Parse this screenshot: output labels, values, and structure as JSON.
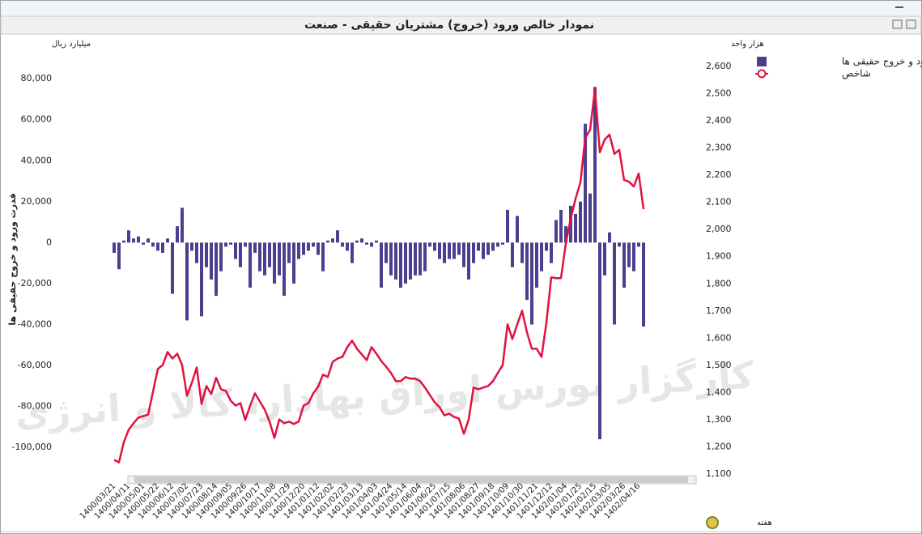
{
  "chart_data": {
    "type": "bar",
    "title": "نمودار خالص ورود (خروج) مشتریان حقیقی - صنعت",
    "y_unit": "میلیارد ریال",
    "y2_unit": "هزار واحد",
    "y_label": "قدرت ورود و خروج حقیقی ها",
    "x_label": "هفته",
    "watermark": "کارگزار بورس اوراق بهادار، کالا و انرژی",
    "categories": [
      "1400/03/21",
      null,
      null,
      "1400/04/11",
      null,
      null,
      "1400/05/01",
      null,
      null,
      "1400/05/22",
      null,
      null,
      "1400/06/12",
      null,
      null,
      "1400/07/02",
      null,
      null,
      "1400/07/23",
      null,
      null,
      "1400/08/14",
      null,
      null,
      "1400/09/05",
      null,
      null,
      "1400/09/26",
      null,
      null,
      "1400/10/17",
      null,
      null,
      "1400/11/08",
      null,
      null,
      "1400/11/29",
      null,
      null,
      "1400/12/20",
      null,
      null,
      "1401/01/12",
      null,
      null,
      "1401/02/02",
      null,
      null,
      "1401/02/23",
      null,
      null,
      "1401/03/13",
      null,
      null,
      "1401/04/03",
      null,
      null,
      "1401/04/24",
      null,
      null,
      "1401/05/14",
      null,
      null,
      "1401/06/04",
      null,
      null,
      "1401/06/25",
      null,
      null,
      "1401/07/15",
      null,
      null,
      "1401/08/06",
      null,
      null,
      "1401/08/27",
      null,
      null,
      "1401/09/18",
      null,
      null,
      "1401/10/09",
      null,
      null,
      "1401/10/30",
      null,
      null,
      "1401/11/21",
      null,
      null,
      "1401/12/12",
      null,
      null,
      "1402/01/04",
      null,
      null,
      "1402/01/25",
      null,
      null,
      "1402/02/15",
      null,
      null,
      "1402/03/05",
      null,
      null,
      "1402/03/26",
      null,
      null,
      "1402/04/16",
      null
    ],
    "series": [
      {
        "name": "قدرت ورود و خروج حقیقی ها",
        "type": "bar",
        "color": "#4b3f8f",
        "values": [
          -5000,
          -13000,
          1000,
          6000,
          2000,
          3000,
          -1000,
          2000,
          -2000,
          -4000,
          -5000,
          2000,
          -25000,
          8000,
          17000,
          -38000,
          -4000,
          -10000,
          -36000,
          -12000,
          -18000,
          -26000,
          -14000,
          -2000,
          -1000,
          -8000,
          -12000,
          -2000,
          -22000,
          -5000,
          -14000,
          -16000,
          -12000,
          -20000,
          -16000,
          -26000,
          -10000,
          -20000,
          -8000,
          -6000,
          -4000,
          -2000,
          -6000,
          -14000,
          1000,
          2000,
          6000,
          -2000,
          -4000,
          -10000,
          1000,
          2000,
          -1000,
          -2000,
          1000,
          -22000,
          -10000,
          -16000,
          -18000,
          -22000,
          -20000,
          -18000,
          -16000,
          -16000,
          -14000,
          -2000,
          -4000,
          -8000,
          -10000,
          -8000,
          -8000,
          -6000,
          -12000,
          -18000,
          -10000,
          -4000,
          -8000,
          -6000,
          -4000,
          -2000,
          -1000,
          16000,
          -12000,
          13000,
          -10000,
          -28000,
          -40000,
          -22000,
          -14000,
          -4000,
          -10000,
          11000,
          16000,
          8000,
          18000,
          14000,
          20000,
          58000,
          24000,
          76000,
          -96000,
          -16000,
          5000,
          -40000,
          -2000,
          -22000,
          -12000,
          -14000,
          -2000,
          -41000
        ]
      },
      {
        "name": "شاخص",
        "type": "line",
        "axis": "y2",
        "color": "#e0123f",
        "values": [
          1152,
          1143,
          1218,
          1263,
          1287,
          1308,
          1313,
          1319,
          1403,
          1487,
          1501,
          1549,
          1525,
          1543,
          1501,
          1388,
          1436,
          1492,
          1358,
          1424,
          1394,
          1454,
          1412,
          1406,
          1370,
          1352,
          1361,
          1299,
          1352,
          1397,
          1367,
          1337,
          1293,
          1233,
          1301,
          1287,
          1293,
          1284,
          1293,
          1352,
          1361,
          1397,
          1421,
          1466,
          1457,
          1513,
          1525,
          1531,
          1567,
          1591,
          1561,
          1540,
          1519,
          1567,
          1543,
          1516,
          1495,
          1472,
          1442,
          1442,
          1457,
          1451,
          1451,
          1442,
          1418,
          1391,
          1364,
          1346,
          1316,
          1322,
          1310,
          1304,
          1248,
          1301,
          1418,
          1412,
          1418,
          1424,
          1442,
          1472,
          1501,
          1651,
          1597,
          1651,
          1701,
          1621,
          1561,
          1561,
          1531,
          1657,
          1824,
          1821,
          1821,
          1949,
          2039,
          2113,
          2173,
          2337,
          2367,
          2516,
          2284,
          2331,
          2349,
          2278,
          2293,
          2182,
          2176,
          2158,
          2206,
          2075
        ]
      }
    ],
    "ylim": [
      -113000,
      86000
    ],
    "yticks": [
      {
        "value": -100000,
        "label": "-100,000"
      },
      {
        "value": -80000,
        "label": "-80,000"
      },
      {
        "value": -60000,
        "label": "-60,000"
      },
      {
        "value": -40000,
        "label": "-40,000"
      },
      {
        "value": -20000,
        "label": "-20,000"
      },
      0,
      {
        "value": 20000,
        "label": "20,000"
      },
      {
        "value": 40000,
        "label": "40,000"
      },
      {
        "value": 60000,
        "label": "60,000"
      },
      {
        "value": 80000,
        "label": "80,000"
      }
    ],
    "y2lim": [
      1100,
      2600
    ],
    "y2ticks": [
      {
        "value": 1100,
        "label": "1,100"
      },
      {
        "value": 1200,
        "label": "1,200"
      },
      {
        "value": 1300,
        "label": "1,300"
      },
      {
        "value": 1400,
        "label": "1,400"
      },
      {
        "value": 1500,
        "label": "1,500"
      },
      {
        "value": 1600,
        "label": "1,600"
      },
      {
        "value": 1700,
        "label": "1,700"
      },
      {
        "value": 1800,
        "label": "1,800"
      },
      {
        "value": 1900,
        "label": "1,900"
      },
      {
        "value": 2000,
        "label": "2,000"
      },
      {
        "value": 2100,
        "label": "2,100"
      },
      {
        "value": 2200,
        "label": "2,200"
      },
      {
        "value": 2300,
        "label": "2,300"
      },
      {
        "value": 2400,
        "label": "2,400"
      },
      {
        "value": 2500,
        "label": "2,500"
      },
      {
        "value": 2600,
        "label": "2,600"
      }
    ],
    "grid": false
  }
}
